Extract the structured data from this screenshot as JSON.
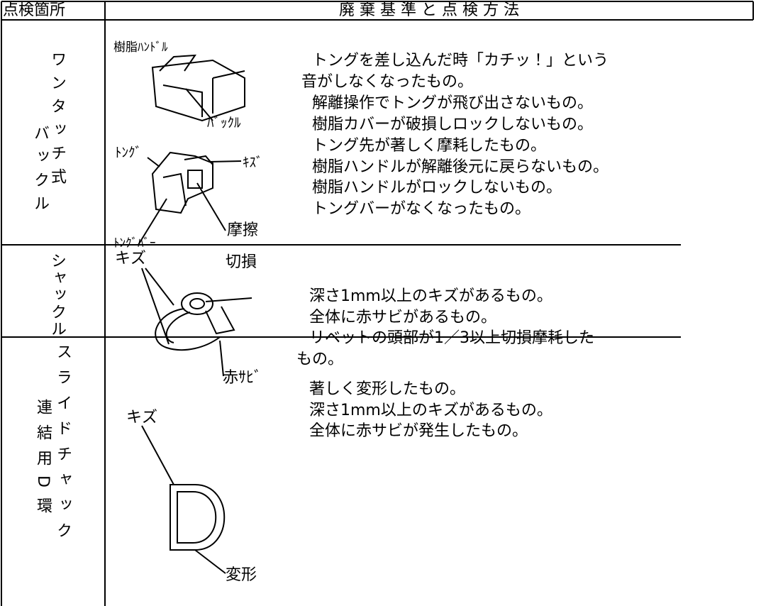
{
  "header": {
    "location": "点検箇所",
    "title": "廃 棄 基 準 と 点 検 方 法"
  },
  "rows": [
    {
      "label_columns": [
        "ワンタッチ式",
        "バックル"
      ],
      "figure_labels": [
        "樹脂ﾊﾝﾄﾞﾙ",
        "ﾊﾞｯｸﾙ",
        "ﾄﾝｸﾞ",
        "ｷｽﾞ",
        "摩擦",
        "ﾄﾝｸﾞﾊﾞｰ"
      ],
      "lines": [
        "トングを差し込んだ時「カチッ！」という",
        "音がしなくなったもの。",
        "解離操作でトングが飛び出さないもの。",
        "樹脂カバーが破損しロックしないもの。",
        "トング先が著しく摩耗したもの。",
        "樹脂ハンドルが解離後元に戻らないもの。",
        "樹脂ハンドルがロックしないもの。",
        "トングバーがなくなったもの。"
      ]
    },
    {
      "label_columns": [
        "シャックル"
      ],
      "figure_labels": [
        "キズ",
        "切損",
        "赤ｻﾋﾞ"
      ],
      "lines": [
        "深さ1mm以上のキズがあるもの。",
        "全体に赤サビがあるもの。",
        "リベットの頭部が1／3以上切損摩耗した",
        "もの。"
      ]
    },
    {
      "label_columns": [
        "スライドチャック",
        "連結用D環"
      ],
      "figure_labels": [
        "キズ",
        "変形"
      ],
      "lines": [
        "著しく変形したもの。",
        "深さ1mm以上のキズがあるもの。",
        "全体に赤サビが発生したもの。"
      ]
    }
  ]
}
